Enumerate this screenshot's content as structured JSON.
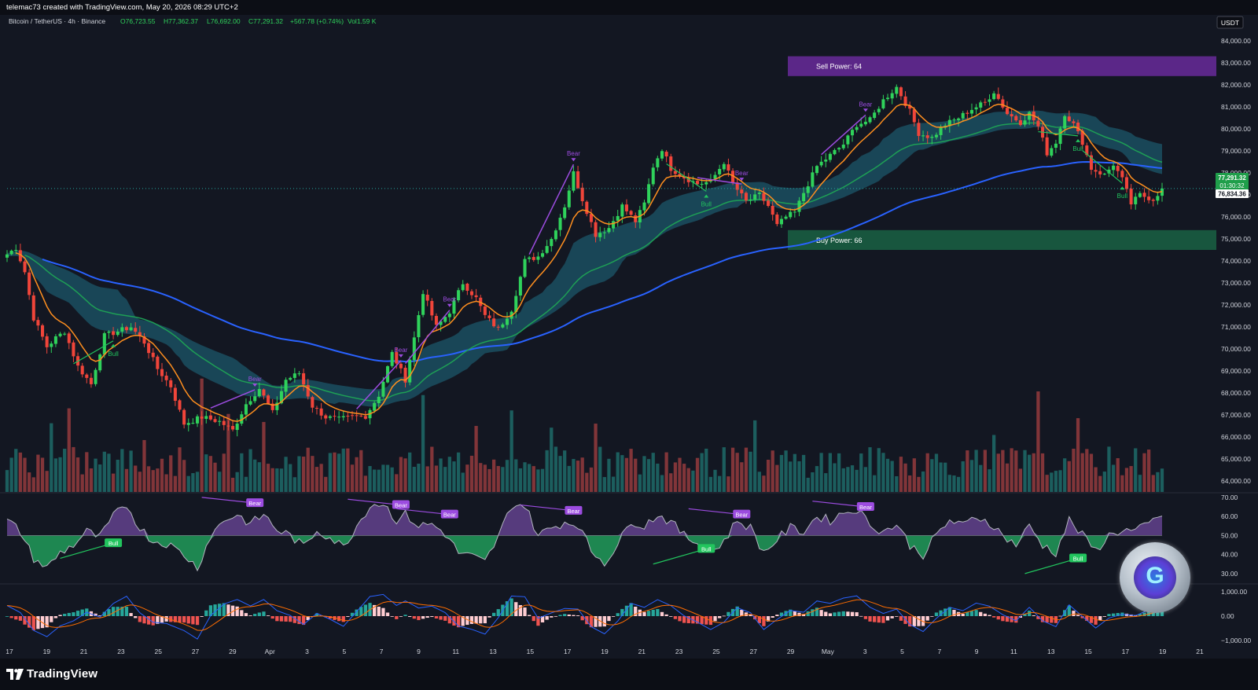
{
  "header": {
    "credit": "telemac73 created with TradingView.com, May 20, 2026 08:29 UTC+2"
  },
  "legend": {
    "symbol": "Bitcoin / TetherUS · 4h · Binance",
    "open": "O76,723.55",
    "high": "H77,362.37",
    "low": "L76,692.00",
    "close": "C77,291.32",
    "change": "+567.78 (+0.74%)",
    "volume": "Vol1.59 K"
  },
  "currency_badge": "USDT",
  "price_badges": {
    "last_price": "77,291.32",
    "countdown": "01:30:32",
    "level": "76,834.36"
  },
  "zones": {
    "sell_power": "Sell Power: 64",
    "buy_power": "Buy Power: 66"
  },
  "footer": {
    "brand": "TradingView"
  },
  "colors": {
    "background": "#131722",
    "bull_candle": "#2fd25b",
    "bear_candle": "#f0453a",
    "ema_fast": "#ff8f1f",
    "ema_mid": "#1e9f55",
    "ema_slow": "#2962ff",
    "cloud": "#1f6e84",
    "divergence": "#9c4ce0",
    "bull_signal": "#22c55e"
  },
  "chart_data": [
    {
      "type": "candlestick",
      "pane": "price",
      "ylim": [
        63500,
        84500
      ],
      "y_ticks": [
        84000,
        83000,
        82000,
        81000,
        80000,
        79000,
        78000,
        77000,
        76000,
        75000,
        74000,
        73000,
        72000,
        71000,
        70000,
        69000,
        68000,
        67000,
        66000,
        65000,
        64000
      ],
      "y_tick_labels": [
        "84,000.00",
        "83,000.00",
        "82,000.00",
        "81,000.00",
        "80,000.00",
        "79,000.00",
        "78,000.00",
        "77,000.00",
        "76,000.00",
        "75,000.00",
        "74,000.00",
        "73,000.00",
        "72,000.00",
        "71,000.00",
        "70,000.00",
        "69,000.00",
        "68,000.00",
        "67,000.00",
        "66,000.00",
        "65,000.00",
        "64,000.00"
      ],
      "x_tick_labels": [
        "17",
        "19",
        "21",
        "23",
        "25",
        "27",
        "29",
        "Apr",
        "3",
        "5",
        "7",
        "9",
        "11",
        "13",
        "15",
        "17",
        "19",
        "21",
        "23",
        "25",
        "27",
        "29",
        "May",
        "3",
        "5",
        "7",
        "9",
        "11",
        "13",
        "15",
        "17",
        "19",
        "21"
      ],
      "close_anchors": [
        [
          0,
          74300
        ],
        [
          2,
          74600
        ],
        [
          4,
          73500
        ],
        [
          6,
          71400
        ],
        [
          9,
          70100
        ],
        [
          11,
          70500
        ],
        [
          13,
          70800
        ],
        [
          16,
          69200
        ],
        [
          19,
          68400
        ],
        [
          22,
          70600
        ],
        [
          25,
          70800
        ],
        [
          28,
          71000
        ],
        [
          31,
          70300
        ],
        [
          34,
          69100
        ],
        [
          37,
          68300
        ],
        [
          40,
          66600
        ],
        [
          44,
          66900
        ],
        [
          48,
          66700
        ],
        [
          51,
          66300
        ],
        [
          54,
          67500
        ],
        [
          57,
          68200
        ],
        [
          60,
          67100
        ],
        [
          63,
          68600
        ],
        [
          66,
          68900
        ],
        [
          69,
          67400
        ],
        [
          72,
          66900
        ],
        [
          75,
          66800
        ],
        [
          78,
          66900
        ],
        [
          81,
          66950
        ],
        [
          84,
          67900
        ],
        [
          87,
          69800
        ],
        [
          90,
          68600
        ],
        [
          92,
          70500
        ],
        [
          94,
          72600
        ],
        [
          97,
          71000
        ],
        [
          100,
          71700
        ],
        [
          103,
          73000
        ],
        [
          106,
          72300
        ],
        [
          108,
          71500
        ],
        [
          111,
          70900
        ],
        [
          114,
          71800
        ],
        [
          117,
          74000
        ],
        [
          120,
          74200
        ],
        [
          123,
          75000
        ],
        [
          126,
          76500
        ],
        [
          128,
          78000
        ],
        [
          130,
          76800
        ],
        [
          133,
          75200
        ],
        [
          136,
          75500
        ],
        [
          139,
          76500
        ],
        [
          142,
          75800
        ],
        [
          144,
          76600
        ],
        [
          146,
          78300
        ],
        [
          148,
          79100
        ],
        [
          150,
          78200
        ],
        [
          153,
          77800
        ],
        [
          156,
          77500
        ],
        [
          159,
          77600
        ],
        [
          162,
          78500
        ],
        [
          164,
          77500
        ],
        [
          167,
          76700
        ],
        [
          170,
          77000
        ],
        [
          172,
          76500
        ],
        [
          174,
          75600
        ],
        [
          176,
          76000
        ],
        [
          178,
          76200
        ],
        [
          180,
          77100
        ],
        [
          183,
          78300
        ],
        [
          186,
          78800
        ],
        [
          189,
          79300
        ],
        [
          192,
          80200
        ],
        [
          195,
          80400
        ],
        [
          198,
          81300
        ],
        [
          201,
          81900
        ],
        [
          204,
          80800
        ],
        [
          206,
          79800
        ],
        [
          209,
          79600
        ],
        [
          212,
          80200
        ],
        [
          215,
          80500
        ],
        [
          218,
          80900
        ],
        [
          221,
          81200
        ],
        [
          223,
          81700
        ],
        [
          226,
          80700
        ],
        [
          229,
          80300
        ],
        [
          231,
          80700
        ],
        [
          233,
          80100
        ],
        [
          235,
          78900
        ],
        [
          237,
          79400
        ],
        [
          239,
          80700
        ],
        [
          241,
          80200
        ],
        [
          243,
          79400
        ],
        [
          245,
          78200
        ],
        [
          248,
          77900
        ],
        [
          250,
          78400
        ],
        [
          252,
          77700
        ],
        [
          254,
          76600
        ],
        [
          256,
          77000
        ],
        [
          259,
          76800
        ],
        [
          261,
          77291
        ]
      ],
      "candle_count": 262,
      "indicators": {
        "ema_fast": "orange line",
        "ema_mid": "green line",
        "ema_slow": "blue line",
        "cloud": "teal band"
      },
      "zones": [
        {
          "name": "Sell Power",
          "from": 82400,
          "to": 83300
        },
        {
          "name": "Buy Power",
          "from": 74500,
          "to": 75400
        }
      ],
      "signals": [
        {
          "label": "Bull",
          "index": 24,
          "side": "below"
        },
        {
          "label": "Bear",
          "index": 56,
          "side": "above"
        },
        {
          "label": "Bear",
          "index": 89,
          "side": "above"
        },
        {
          "label": "Bear",
          "index": 100,
          "side": "above"
        },
        {
          "label": "Bear",
          "index": 128,
          "side": "above"
        },
        {
          "label": "Bull",
          "index": 158,
          "side": "below"
        },
        {
          "label": "Bear",
          "index": 166,
          "side": "above"
        },
        {
          "label": "Bear",
          "index": 194,
          "side": "above"
        },
        {
          "label": "Bull",
          "index": 242,
          "side": "below"
        },
        {
          "label": "Bull",
          "index": 252,
          "side": "below"
        }
      ]
    },
    {
      "type": "area",
      "pane": "oscillator",
      "ylim": [
        25,
        72
      ],
      "y_ticks": [
        70,
        60,
        50,
        40,
        30
      ],
      "y_tick_labels": [
        "70.00",
        "60.00",
        "50.00",
        "40.00",
        "30.00"
      ],
      "midline": 50,
      "anchors": [
        [
          0,
          58
        ],
        [
          3,
          52
        ],
        [
          6,
          38
        ],
        [
          9,
          33
        ],
        [
          12,
          41
        ],
        [
          15,
          45
        ],
        [
          18,
          52
        ],
        [
          21,
          49
        ],
        [
          24,
          60
        ],
        [
          27,
          66
        ],
        [
          30,
          54
        ],
        [
          33,
          47
        ],
        [
          36,
          46
        ],
        [
          40,
          40
        ],
        [
          43,
          33
        ],
        [
          46,
          50
        ],
        [
          49,
          58
        ],
        [
          52,
          61
        ],
        [
          55,
          56
        ],
        [
          58,
          61
        ],
        [
          61,
          53
        ],
        [
          64,
          50
        ],
        [
          67,
          44
        ],
        [
          70,
          53
        ],
        [
          73,
          49
        ],
        [
          76,
          44
        ],
        [
          79,
          55
        ],
        [
          82,
          66
        ],
        [
          85,
          67
        ],
        [
          88,
          58
        ],
        [
          90,
          61
        ],
        [
          93,
          55
        ],
        [
          96,
          56
        ],
        [
          99,
          51
        ],
        [
          102,
          41
        ],
        [
          105,
          39
        ],
        [
          108,
          36
        ],
        [
          111,
          49
        ],
        [
          114,
          66
        ],
        [
          117,
          66
        ],
        [
          120,
          50
        ],
        [
          123,
          54
        ],
        [
          126,
          57
        ],
        [
          129,
          56
        ],
        [
          132,
          42
        ],
        [
          135,
          36
        ],
        [
          138,
          45
        ],
        [
          141,
          58
        ],
        [
          144,
          55
        ],
        [
          147,
          61
        ],
        [
          150,
          57
        ],
        [
          153,
          50
        ],
        [
          156,
          46
        ],
        [
          159,
          41
        ],
        [
          162,
          47
        ],
        [
          165,
          58
        ],
        [
          168,
          54
        ],
        [
          171,
          41
        ],
        [
          174,
          48
        ],
        [
          177,
          54
        ],
        [
          180,
          52
        ],
        [
          183,
          60
        ],
        [
          186,
          58
        ],
        [
          189,
          62
        ],
        [
          192,
          64
        ],
        [
          195,
          56
        ],
        [
          198,
          52
        ],
        [
          201,
          56
        ],
        [
          204,
          45
        ],
        [
          207,
          40
        ],
        [
          210,
          50
        ],
        [
          213,
          58
        ],
        [
          216,
          55
        ],
        [
          219,
          60
        ],
        [
          222,
          57
        ],
        [
          225,
          50
        ],
        [
          228,
          45
        ],
        [
          231,
          55
        ],
        [
          234,
          45
        ],
        [
          237,
          41
        ],
        [
          240,
          58
        ],
        [
          243,
          50
        ],
        [
          246,
          42
        ],
        [
          249,
          50
        ],
        [
          252,
          53
        ],
        [
          255,
          52
        ],
        [
          258,
          56
        ],
        [
          261,
          61
        ]
      ],
      "labels": [
        {
          "label": "Bull",
          "index": 24,
          "value": 46
        },
        {
          "label": "Bear",
          "index": 56,
          "value": 67
        },
        {
          "label": "Bear",
          "index": 89,
          "value": 66
        },
        {
          "label": "Bear",
          "index": 100,
          "value": 61
        },
        {
          "label": "Bear",
          "index": 128,
          "value": 63
        },
        {
          "label": "Bull",
          "index": 158,
          "value": 43
        },
        {
          "label": "Bear",
          "index": 166,
          "value": 61
        },
        {
          "label": "Bear",
          "index": 194,
          "value": 65
        },
        {
          "label": "Bull",
          "index": 242,
          "value": 38
        }
      ]
    },
    {
      "type": "bar",
      "pane": "macd",
      "ylim": [
        -1300,
        1300
      ],
      "y_ticks": [
        1000,
        0,
        -1000
      ],
      "y_tick_labels": [
        "1,000.00",
        "0.00",
        "−1,000.00"
      ]
    }
  ]
}
